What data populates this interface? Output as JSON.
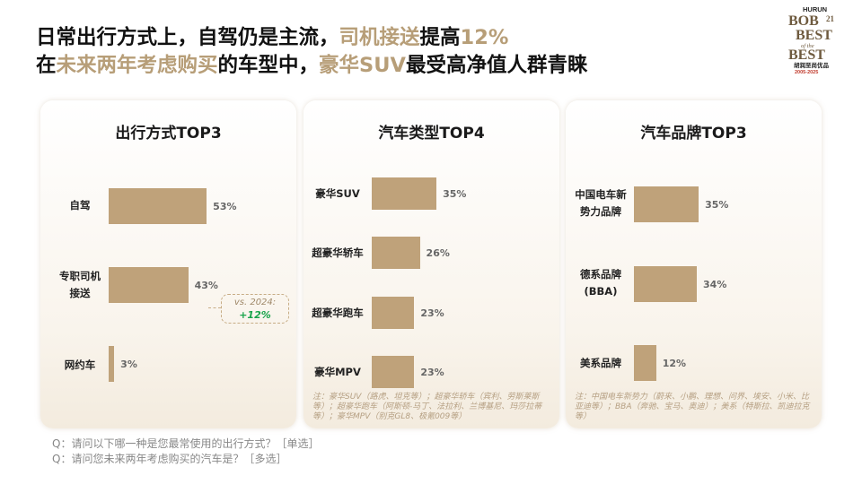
{
  "headline": {
    "line1_a": "日常出行方式上，自驾仍是主流，",
    "line1_hl": "司机接送",
    "line1_b": "提高",
    "line1_num": "12%",
    "line2_a": "在",
    "line2_hl": "未来两年考虑购买",
    "line2_b": "的车型中，",
    "line2_hl2": "豪华SUV",
    "line2_c": "最受高净值人群青睐"
  },
  "logo": {
    "top": "HURUN",
    "bob": "BOB",
    "num": "21",
    "best1": "BEST",
    "of": "of the",
    "best2": "BEST",
    "cn": "胡润至尚优品",
    "years": "2005-2025"
  },
  "colors": {
    "bar": "#bfa27a",
    "accent": "#b79e78",
    "green": "#18a34a"
  },
  "chart_data": [
    {
      "type": "bar",
      "orientation": "horizontal",
      "title": "出行方式TOP3",
      "categories": [
        "自驾",
        "专职司机\n接送",
        "网约车"
      ],
      "values": [
        53,
        43,
        3
      ],
      "value_labels": [
        "53%",
        "43%",
        "3%"
      ],
      "annotation": {
        "line1": "vs. 2024:",
        "line2": "+12%"
      }
    },
    {
      "type": "bar",
      "orientation": "horizontal",
      "title": "汽车类型TOP4",
      "categories": [
        "豪华SUV",
        "超豪华轿车",
        "超豪华跑车",
        "豪华MPV"
      ],
      "values": [
        35,
        26,
        23,
        23
      ],
      "value_labels": [
        "35%",
        "26%",
        "23%",
        "23%"
      ],
      "note": "注：豪华SUV（路虎、坦克等）；超豪华轿车（宾利、劳斯莱斯等）；超豪华跑车（阿斯顿-马丁、法拉利、兰博基尼、玛莎拉蒂等）；豪华MPV（别克GL8、极氪009等）"
    },
    {
      "type": "bar",
      "orientation": "horizontal",
      "title": "汽车品牌TOP3",
      "categories": [
        "中国电车新\n势力品牌",
        "德系品牌\n(BBA)",
        "美系品牌"
      ],
      "values": [
        35,
        34,
        12
      ],
      "value_labels": [
        "35%",
        "34%",
        "12%"
      ],
      "note": "注：中国电车新势力（蔚来、小鹏、理想、问界、埃安、小米、比亚迪等）；BBA（奔驰、宝马、奥迪）；美系（特斯拉、凯迪拉克等）"
    }
  ],
  "questions": [
    "Q：请问以下哪一种是您最常使用的出行方式？［单选］",
    "Q：请问您未来两年考虑购买的汽车是？［多选］"
  ]
}
